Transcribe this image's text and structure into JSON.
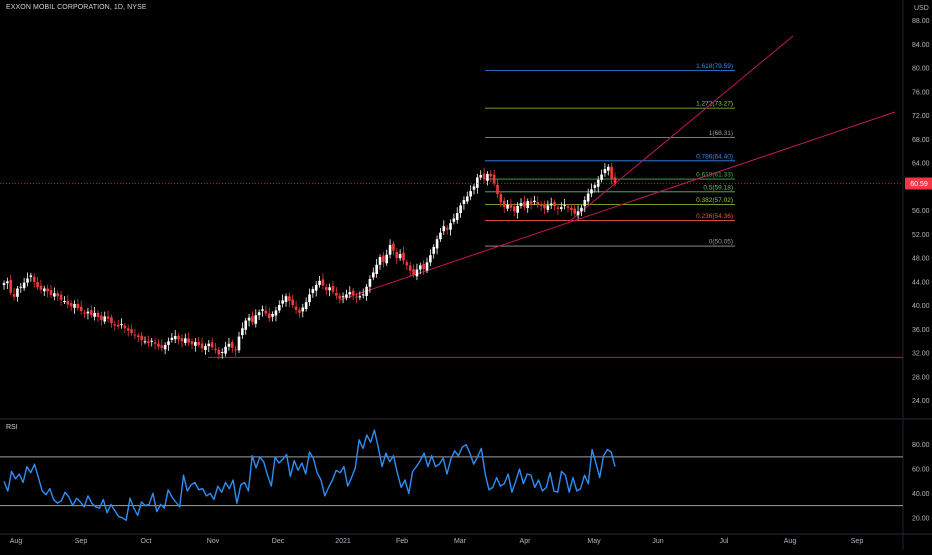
{
  "header": {
    "symbol_title": "EXXON MOBIL CORPORATION, 1D, NYSE",
    "currency": "USD"
  },
  "colors": {
    "background": "#000000",
    "axis_text": "#b2b5be",
    "up_candle": "#ffffff",
    "down_candle": "#ef3b3b",
    "trendline": "#c2185b",
    "rsi_line": "#2f8ef4",
    "rsi_band": "#a0a0a0",
    "price_badge": "#f23645"
  },
  "chart_data": [
    {
      "type": "candlestick",
      "title": "EXXON MOBIL CORPORATION, 1D, NYSE",
      "y_axis": {
        "ticks": [
          24,
          28,
          32,
          36,
          40,
          44,
          48,
          52,
          56,
          60,
          64,
          68,
          72,
          76,
          80,
          84,
          88
        ],
        "ylim": [
          21.6,
          89.8
        ]
      },
      "x_axis": {
        "ticks": [
          "Aug",
          "Sep",
          "Oct",
          "Nov",
          "Dec",
          "2021",
          "Feb",
          "Mar",
          "Apr",
          "May",
          "Jun",
          "Jul",
          "Aug",
          "Sep"
        ]
      },
      "last_price_label": "60.59",
      "close_series_approx": [
        43.8,
        44.1,
        42.2,
        41.5,
        42.9,
        43.2,
        43.9,
        44.6,
        45.1,
        44.0,
        43.1,
        42.7,
        42.9,
        42.4,
        41.8,
        42.1,
        41.6,
        41.0,
        40.8,
        40.2,
        39.9,
        40.3,
        39.6,
        39.1,
        38.7,
        39.0,
        38.4,
        38.8,
        38.1,
        37.6,
        38.2,
        37.8,
        37.1,
        36.8,
        36.5,
        36.9,
        36.2,
        35.8,
        35.4,
        35.0,
        34.7,
        34.2,
        34.0,
        33.7,
        34.1,
        33.6,
        33.1,
        32.9,
        33.4,
        34.0,
        34.6,
        34.9,
        34.3,
        34.0,
        34.5,
        33.8,
        33.5,
        33.9,
        33.4,
        32.8,
        33.2,
        33.6,
        33.0,
        32.6,
        31.8,
        32.2,
        33.1,
        33.6,
        32.9,
        32.5,
        34.8,
        36.2,
        37.5,
        38.0,
        37.2,
        38.4,
        38.9,
        39.4,
        38.7,
        37.9,
        38.6,
        39.2,
        40.1,
        40.9,
        41.6,
        40.8,
        40.1,
        39.3,
        38.8,
        39.7,
        40.6,
        41.9,
        42.8,
        43.5,
        44.2,
        43.4,
        42.6,
        43.1,
        42.4,
        41.7,
        41.2,
        41.6,
        41.9,
        42.3,
        41.8,
        41.4,
        41.6,
        41.9,
        43.2,
        44.5,
        45.6,
        46.9,
        48.2,
        47.4,
        48.6,
        50.2,
        49.3,
        48.0,
        48.7,
        47.6,
        46.8,
        45.9,
        45.2,
        46.1,
        46.8,
        46.2,
        47.3,
        48.5,
        49.9,
        51.2,
        52.3,
        53.4,
        52.8,
        53.9,
        54.7,
        55.6,
        56.9,
        57.8,
        58.4,
        59.3,
        60.1,
        61.6,
        62.0,
        61.3,
        62.2,
        61.8,
        60.6,
        58.8,
        57.4,
        56.6,
        57.0,
        56.5,
        55.9,
        56.8,
        57.3,
        56.7,
        57.6,
        57.2,
        57.7,
        57.1,
        56.8,
        56.4,
        56.9,
        57.2,
        56.8,
        56.3,
        56.6,
        57.0,
        56.5,
        56.1,
        55.5,
        55.9,
        56.5,
        57.8,
        58.9,
        59.6,
        60.3,
        61.2,
        62.1,
        63.0,
        63.4,
        61.4,
        60.59
      ],
      "fibonacci_levels": [
        {
          "ratio": 1.618,
          "price": 79.59,
          "label": "1.618(79.59)",
          "color": "#2f8ef4"
        },
        {
          "ratio": 1.272,
          "price": 73.27,
          "label": "1.272(73.27)",
          "color": "#9acd32"
        },
        {
          "ratio": 1,
          "price": 68.31,
          "label": "1(68.31)",
          "color": "#9e9e9e"
        },
        {
          "ratio": 0.786,
          "price": 64.4,
          "label": "0.786(64.40)",
          "color": "#2f8ef4"
        },
        {
          "ratio": 0.618,
          "price": 61.33,
          "label": "0.618(61.33)",
          "color": "#4caf50"
        },
        {
          "ratio": 0.5,
          "price": 59.18,
          "label": "0.5(59.18)",
          "color": "#66bb6a"
        },
        {
          "ratio": 0.382,
          "price": 57.02,
          "label": "0.382(57.02)",
          "color": "#9acd32"
        },
        {
          "ratio": 0.236,
          "price": 54.36,
          "label": "0.236(54.36)",
          "color": "#ef5350"
        },
        {
          "ratio": 0,
          "price": 50.05,
          "label": "0(50.05)",
          "color": "#9e9e9e"
        }
      ],
      "horizontal_support": 31.3
    },
    {
      "type": "line",
      "title": "RSI",
      "y_axis": {
        "ticks": [
          20,
          40,
          60,
          80
        ],
        "ylim": [
          10,
          97
        ]
      },
      "bands": [
        70,
        30
      ],
      "values": [
        50,
        42,
        58,
        52,
        56,
        49,
        62,
        57,
        64,
        53,
        42,
        39,
        44,
        35,
        32,
        34,
        41,
        37,
        30,
        36,
        33,
        29,
        38,
        32,
        29,
        28,
        35,
        24,
        31,
        26,
        21,
        20,
        18,
        36,
        28,
        22,
        33,
        30,
        31,
        40,
        25,
        31,
        28,
        43,
        37,
        33,
        29,
        55,
        42,
        47,
        49,
        43,
        44,
        38,
        40,
        35,
        46,
        41,
        49,
        44,
        51,
        32,
        47,
        49,
        42,
        71,
        61,
        70,
        66,
        55,
        46,
        70,
        65,
        68,
        72,
        54,
        67,
        59,
        65,
        56,
        74,
        69,
        57,
        51,
        38,
        45,
        51,
        59,
        57,
        62,
        46,
        53,
        61,
        84,
        77,
        88,
        82,
        92,
        78,
        62,
        73,
        66,
        71,
        57,
        45,
        51,
        40,
        58,
        62,
        67,
        73,
        62,
        71,
        62,
        64,
        69,
        56,
        68,
        75,
        71,
        78,
        80,
        73,
        64,
        70,
        77,
        56,
        43,
        45,
        53,
        46,
        48,
        56,
        41,
        50,
        60,
        48,
        56,
        55,
        45,
        51,
        42,
        45,
        57,
        42,
        41,
        58,
        55,
        41,
        53,
        42,
        44,
        55,
        48,
        76,
        65,
        53,
        71,
        76,
        74,
        62
      ]
    }
  ]
}
